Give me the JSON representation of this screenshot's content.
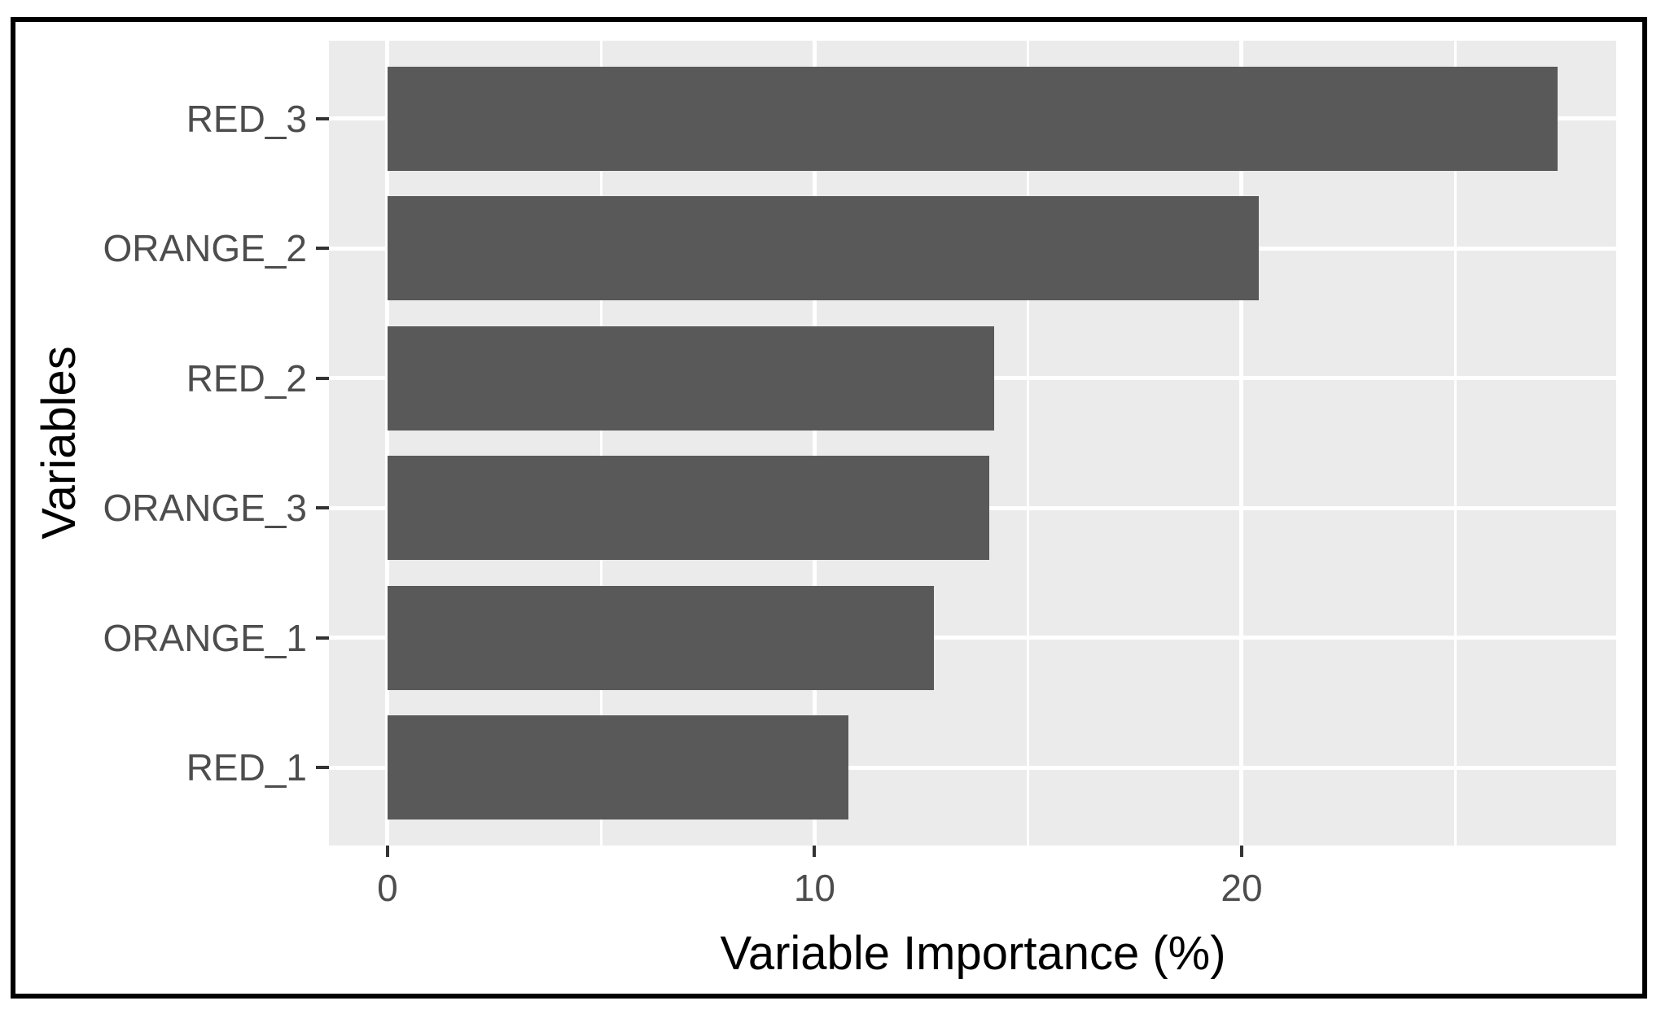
{
  "figure": {
    "kind": "ggplot-style horizontal bar chart screenshot",
    "background_color": "#ffffff",
    "outer_border_color": "#000000",
    "panel_background_color": "#ebebeb",
    "gridline_color": "#ffffff",
    "bar_fill_color": "#595959",
    "axis_tick_color": "#333333",
    "tick_label_color": "#4d4d4d",
    "axis_title_color": "#000000"
  },
  "chart_data": {
    "type": "bar",
    "orientation": "horizontal",
    "title": "",
    "xlabel": "Variable Importance (%)",
    "ylabel": "Variables",
    "categories": [
      "RED_3",
      "ORANGE_2",
      "RED_2",
      "ORANGE_3",
      "ORANGE_1",
      "RED_1"
    ],
    "values": [
      27.4,
      20.4,
      14.2,
      14.1,
      12.8,
      10.8
    ],
    "x_tick_values": [
      0,
      10,
      20
    ],
    "x_tick_labels": [
      "0",
      "10",
      "20"
    ],
    "x_minor_gridlines": [
      5,
      15,
      25
    ],
    "xlim": [
      -1.37,
      28.77
    ],
    "grid": "white major + minor vertical gridlines and major horizontal gridlines on gray panel",
    "legend": "none"
  }
}
